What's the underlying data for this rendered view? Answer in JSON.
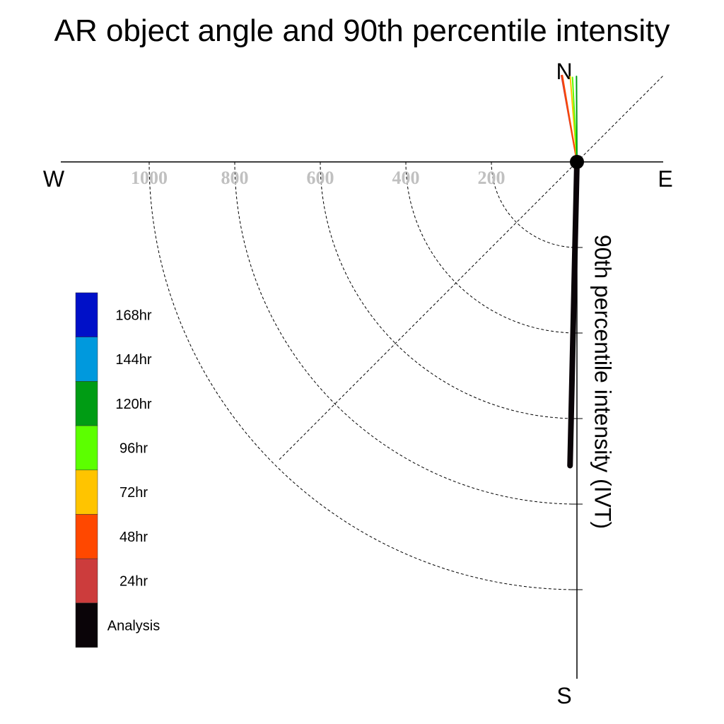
{
  "chart_data": {
    "type": "polar-quarter",
    "title": "AR object angle and 90th percentile intensity",
    "ylabel": "90th percentile intensity (IVT)",
    "compass": {
      "north": "N",
      "south": "S",
      "east": "E",
      "west": "W"
    },
    "radial_ticks": [
      "1000",
      "800",
      "600",
      "400",
      "200"
    ],
    "radial_tick_values": [
      1000,
      800,
      600,
      400,
      200
    ],
    "rlim": [
      0,
      1200
    ],
    "grid": true,
    "legend": {
      "placement": "left",
      "entries": [
        {
          "label": "168hr",
          "color": "#0010c8"
        },
        {
          "label": "144hr",
          "color": "#0099dd"
        },
        {
          "label": "120hr",
          "color": "#009c14"
        },
        {
          "label": "96hr",
          "color": "#5cff00"
        },
        {
          "label": "72hr",
          "color": "#ffc400"
        },
        {
          "label": "48hr",
          "color": "#ff4800"
        },
        {
          "label": "24hr",
          "color": "#cc3c3c"
        },
        {
          "label": "Analysis",
          "color": "#0a0408"
        }
      ]
    },
    "series": [
      {
        "name": "Analysis",
        "color": "#0a0408",
        "angle_deg": 181.3,
        "intensity": 710,
        "width": 8
      },
      {
        "name": "24hr",
        "color": "#cc3c3c",
        "angle_deg": -10.2,
        "intensity": 205,
        "width": 2
      },
      {
        "name": "48hr",
        "color": "#ff4800",
        "angle_deg": -9.6,
        "intensity": 205,
        "width": 2
      },
      {
        "name": "72hr",
        "color": "#ffc400",
        "angle_deg": -4.5,
        "intensity": 200,
        "width": 2
      },
      {
        "name": "96hr",
        "color": "#5cff00",
        "angle_deg": -3.0,
        "intensity": 198,
        "width": 2
      },
      {
        "name": "120hr",
        "color": "#009c14",
        "angle_deg": -0.3,
        "intensity": 200,
        "width": 2
      }
    ]
  }
}
